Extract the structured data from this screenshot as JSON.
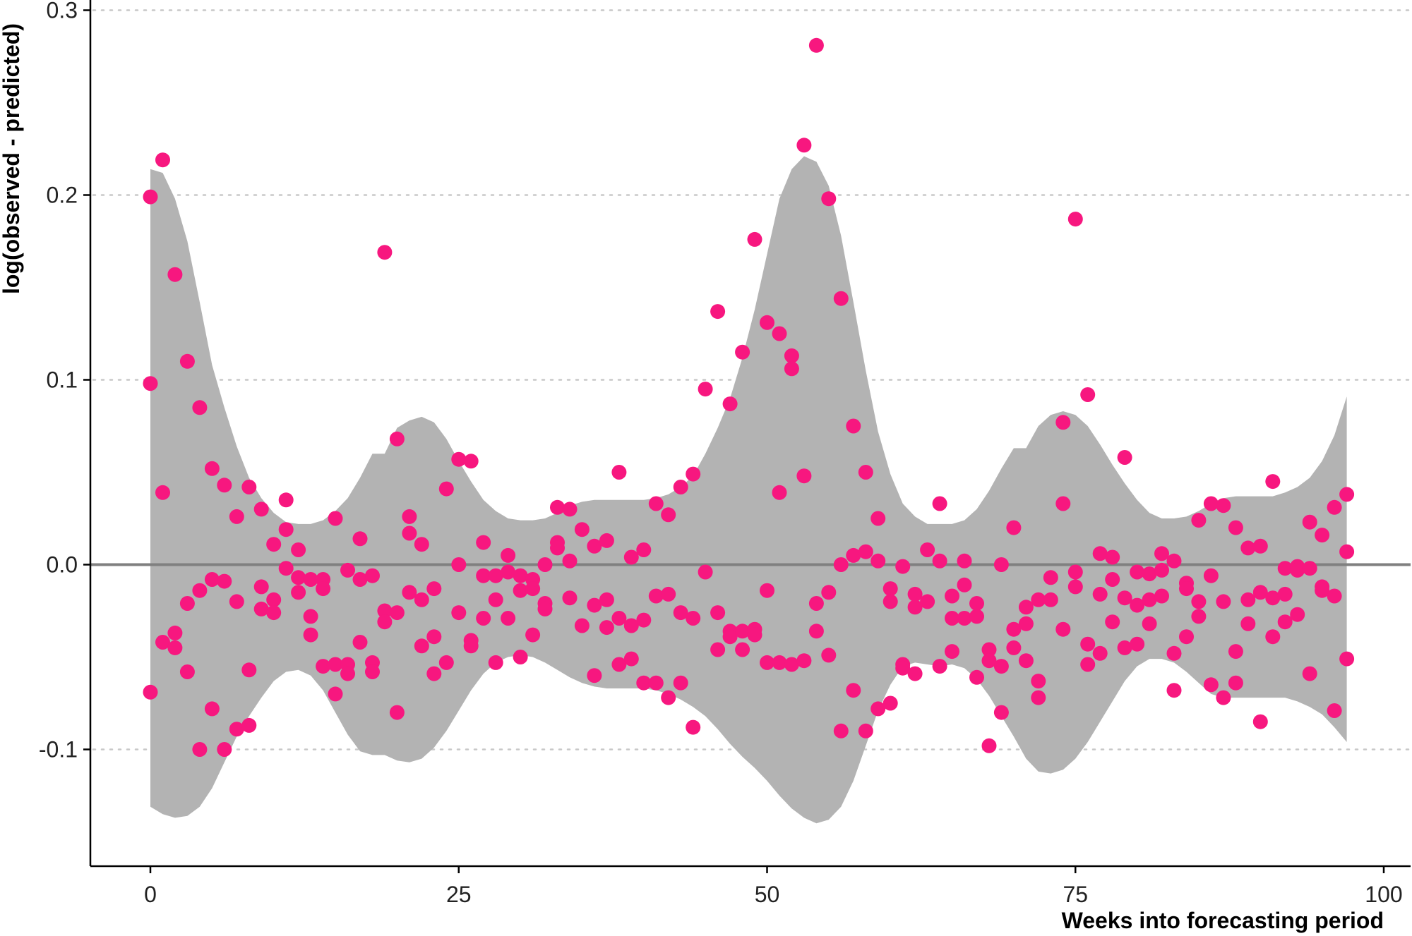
{
  "chart_data": {
    "type": "scatter",
    "xlabel": "Weeks into forecasting period",
    "ylabel": "log(observed - predicted)",
    "xlim": [
      -5,
      101
    ],
    "ylim": [
      -0.165,
      0.305
    ],
    "x_ticks": [
      0,
      25,
      50,
      75,
      100
    ],
    "x_tick_labels": [
      "0",
      "25",
      "50",
      "75",
      "100"
    ],
    "y_ticks": [
      -0.1,
      0.0,
      0.1,
      0.2,
      0.3
    ],
    "y_tick_labels": [
      "-0.1",
      "0.0",
      "0.1",
      "0.2",
      "0.3"
    ],
    "grid": "horizontal-dotted",
    "reference_line_y": 0,
    "colors": {
      "points": "#f7177f",
      "band": "#b3b3b3",
      "reference_line": "#808080",
      "grid": "#c8c8c8",
      "axis": "#000000"
    },
    "band": {
      "x": [
        0,
        1,
        2,
        3,
        4,
        5,
        6,
        7,
        8,
        9,
        10,
        11,
        12,
        13,
        14,
        15,
        16,
        17,
        18,
        19,
        20,
        21,
        22,
        23,
        24,
        25,
        26,
        27,
        28,
        29,
        30,
        31,
        32,
        33,
        34,
        35,
        36,
        37,
        38,
        39,
        40,
        41,
        42,
        43,
        44,
        45,
        46,
        47,
        48,
        49,
        50,
        51,
        52,
        53,
        54,
        55,
        56,
        57,
        58,
        59,
        60,
        61,
        62,
        63,
        64,
        65,
        66,
        67,
        68,
        69,
        70,
        71,
        72,
        73,
        74,
        75,
        76,
        77,
        78,
        79,
        80,
        81,
        82,
        83,
        84,
        85,
        86,
        87,
        88,
        89,
        90,
        91,
        92,
        93,
        94,
        95,
        96,
        97
      ],
      "upper": [
        0.214,
        0.212,
        0.198,
        0.175,
        0.142,
        0.108,
        0.085,
        0.064,
        0.047,
        0.036,
        0.028,
        0.023,
        0.022,
        0.022,
        0.024,
        0.029,
        0.036,
        0.047,
        0.06,
        0.06,
        0.074,
        0.078,
        0.08,
        0.077,
        0.068,
        0.056,
        0.045,
        0.035,
        0.029,
        0.025,
        0.024,
        0.024,
        0.025,
        0.028,
        0.032,
        0.034,
        0.035,
        0.035,
        0.035,
        0.035,
        0.035,
        0.036,
        0.038,
        0.042,
        0.048,
        0.06,
        0.074,
        0.09,
        0.112,
        0.138,
        0.168,
        0.198,
        0.214,
        0.221,
        0.218,
        0.205,
        0.178,
        0.142,
        0.105,
        0.072,
        0.049,
        0.033,
        0.026,
        0.022,
        0.022,
        0.022,
        0.024,
        0.03,
        0.04,
        0.052,
        0.063,
        0.063,
        0.075,
        0.081,
        0.083,
        0.081,
        0.075,
        0.065,
        0.054,
        0.044,
        0.035,
        0.028,
        0.025,
        0.025,
        0.026,
        0.029,
        0.033,
        0.036,
        0.037,
        0.037,
        0.037,
        0.037,
        0.039,
        0.042,
        0.047,
        0.056,
        0.07,
        0.091
      ],
      "lower": [
        -0.131,
        -0.135,
        -0.137,
        -0.136,
        -0.131,
        -0.121,
        -0.107,
        -0.093,
        -0.082,
        -0.072,
        -0.063,
        -0.058,
        -0.057,
        -0.06,
        -0.068,
        -0.08,
        -0.092,
        -0.101,
        -0.103,
        -0.103,
        -0.106,
        -0.107,
        -0.105,
        -0.099,
        -0.09,
        -0.079,
        -0.068,
        -0.059,
        -0.053,
        -0.05,
        -0.049,
        -0.05,
        -0.053,
        -0.057,
        -0.061,
        -0.064,
        -0.066,
        -0.067,
        -0.067,
        -0.067,
        -0.067,
        -0.068,
        -0.07,
        -0.073,
        -0.077,
        -0.082,
        -0.089,
        -0.097,
        -0.104,
        -0.11,
        -0.117,
        -0.125,
        -0.132,
        -0.137,
        -0.14,
        -0.138,
        -0.131,
        -0.117,
        -0.098,
        -0.079,
        -0.065,
        -0.055,
        -0.053,
        -0.054,
        -0.055,
        -0.054,
        -0.056,
        -0.062,
        -0.071,
        -0.082,
        -0.093,
        -0.105,
        -0.112,
        -0.113,
        -0.111,
        -0.105,
        -0.096,
        -0.085,
        -0.074,
        -0.063,
        -0.055,
        -0.051,
        -0.051,
        -0.053,
        -0.058,
        -0.064,
        -0.07,
        -0.072,
        -0.072,
        -0.072,
        -0.072,
        -0.072,
        -0.072,
        -0.074,
        -0.077,
        -0.081,
        -0.088,
        -0.096
      ]
    },
    "points": [
      [
        0,
        0.199
      ],
      [
        0,
        0.098
      ],
      [
        0,
        -0.069
      ],
      [
        1,
        0.219
      ],
      [
        1,
        0.039
      ],
      [
        1,
        -0.042
      ],
      [
        2,
        0.157
      ],
      [
        2,
        -0.045
      ],
      [
        2,
        -0.037
      ],
      [
        3,
        0.11
      ],
      [
        3,
        -0.021
      ],
      [
        3,
        -0.058
      ],
      [
        4,
        0.085
      ],
      [
        4,
        -0.014
      ],
      [
        4,
        -0.1
      ],
      [
        5,
        0.052
      ],
      [
        5,
        -0.008
      ],
      [
        5,
        -0.078
      ],
      [
        6,
        0.043
      ],
      [
        6,
        -0.009
      ],
      [
        6,
        -0.1
      ],
      [
        7,
        0.026
      ],
      [
        7,
        -0.02
      ],
      [
        7,
        -0.089
      ],
      [
        8,
        0.042
      ],
      [
        8,
        -0.057
      ],
      [
        8,
        -0.087
      ],
      [
        9,
        0.03
      ],
      [
        9,
        -0.012
      ],
      [
        9,
        -0.024
      ],
      [
        10,
        0.011
      ],
      [
        10,
        -0.019
      ],
      [
        10,
        -0.026
      ],
      [
        11,
        0.035
      ],
      [
        11,
        0.019
      ],
      [
        11,
        -0.002
      ],
      [
        12,
        0.008
      ],
      [
        12,
        -0.007
      ],
      [
        12,
        -0.015
      ],
      [
        13,
        -0.008
      ],
      [
        13,
        -0.028
      ],
      [
        13,
        -0.038
      ],
      [
        14,
        -0.008
      ],
      [
        14,
        -0.013
      ],
      [
        14,
        -0.055
      ],
      [
        15,
        0.025
      ],
      [
        15,
        -0.054
      ],
      [
        15,
        -0.07
      ],
      [
        16,
        -0.003
      ],
      [
        16,
        -0.054
      ],
      [
        16,
        -0.059
      ],
      [
        17,
        0.014
      ],
      [
        17,
        -0.008
      ],
      [
        17,
        -0.042
      ],
      [
        18,
        -0.006
      ],
      [
        18,
        -0.053
      ],
      [
        18,
        -0.058
      ],
      [
        19,
        0.169
      ],
      [
        19,
        -0.025
      ],
      [
        19,
        -0.031
      ],
      [
        20,
        0.068
      ],
      [
        20,
        -0.026
      ],
      [
        20,
        -0.08
      ],
      [
        21,
        0.026
      ],
      [
        21,
        0.017
      ],
      [
        21,
        -0.015
      ],
      [
        22,
        0.011
      ],
      [
        22,
        -0.019
      ],
      [
        22,
        -0.044
      ],
      [
        23,
        -0.013
      ],
      [
        23,
        -0.039
      ],
      [
        23,
        -0.059
      ],
      [
        24,
        0.041
      ],
      [
        24,
        -0.053
      ],
      [
        25,
        0.057
      ],
      [
        25,
        0.0
      ],
      [
        25,
        -0.026
      ],
      [
        26,
        0.056
      ],
      [
        26,
        -0.041
      ],
      [
        26,
        -0.044
      ],
      [
        27,
        0.012
      ],
      [
        27,
        -0.006
      ],
      [
        27,
        -0.029
      ],
      [
        28,
        -0.006
      ],
      [
        28,
        -0.019
      ],
      [
        28,
        -0.053
      ],
      [
        29,
        0.005
      ],
      [
        29,
        -0.004
      ],
      [
        29,
        -0.029
      ],
      [
        30,
        -0.006
      ],
      [
        30,
        -0.014
      ],
      [
        30,
        -0.05
      ],
      [
        31,
        -0.008
      ],
      [
        31,
        -0.013
      ],
      [
        31,
        -0.038
      ],
      [
        32,
        0.0
      ],
      [
        32,
        -0.021
      ],
      [
        32,
        -0.024
      ],
      [
        33,
        0.031
      ],
      [
        33,
        0.012
      ],
      [
        33,
        0.009
      ],
      [
        34,
        0.03
      ],
      [
        34,
        0.002
      ],
      [
        34,
        -0.018
      ],
      [
        35,
        0.019
      ],
      [
        35,
        -0.033
      ],
      [
        36,
        0.01
      ],
      [
        36,
        -0.022
      ],
      [
        36,
        -0.06
      ],
      [
        37,
        0.013
      ],
      [
        37,
        -0.019
      ],
      [
        37,
        -0.034
      ],
      [
        38,
        0.05
      ],
      [
        38,
        -0.029
      ],
      [
        38,
        -0.054
      ],
      [
        39,
        0.004
      ],
      [
        39,
        -0.033
      ],
      [
        39,
        -0.051
      ],
      [
        40,
        0.008
      ],
      [
        40,
        -0.03
      ],
      [
        40,
        -0.064
      ],
      [
        41,
        0.033
      ],
      [
        41,
        -0.017
      ],
      [
        41,
        -0.064
      ],
      [
        42,
        0.027
      ],
      [
        42,
        -0.016
      ],
      [
        42,
        -0.072
      ],
      [
        43,
        0.042
      ],
      [
        43,
        -0.026
      ],
      [
        43,
        -0.064
      ],
      [
        44,
        0.049
      ],
      [
        44,
        -0.029
      ],
      [
        44,
        -0.088
      ],
      [
        45,
        0.095
      ],
      [
        45,
        -0.004
      ],
      [
        46,
        0.137
      ],
      [
        46,
        -0.026
      ],
      [
        46,
        -0.046
      ],
      [
        47,
        0.087
      ],
      [
        47,
        -0.036
      ],
      [
        47,
        -0.039
      ],
      [
        48,
        0.115
      ],
      [
        48,
        -0.036
      ],
      [
        48,
        -0.046
      ],
      [
        49,
        0.176
      ],
      [
        49,
        -0.035
      ],
      [
        49,
        -0.038
      ],
      [
        50,
        0.131
      ],
      [
        50,
        -0.014
      ],
      [
        50,
        -0.053
      ],
      [
        51,
        0.125
      ],
      [
        51,
        0.039
      ],
      [
        51,
        -0.053
      ],
      [
        52,
        0.113
      ],
      [
        52,
        0.106
      ],
      [
        52,
        -0.054
      ],
      [
        53,
        0.227
      ],
      [
        53,
        0.048
      ],
      [
        53,
        -0.052
      ],
      [
        54,
        0.281
      ],
      [
        54,
        -0.021
      ],
      [
        54,
        -0.036
      ],
      [
        55,
        0.198
      ],
      [
        55,
        -0.015
      ],
      [
        55,
        -0.049
      ],
      [
        56,
        0.144
      ],
      [
        56,
        0.0
      ],
      [
        56,
        -0.09
      ],
      [
        57,
        0.075
      ],
      [
        57,
        0.005
      ],
      [
        57,
        -0.068
      ],
      [
        58,
        0.05
      ],
      [
        58,
        0.007
      ],
      [
        58,
        -0.09
      ],
      [
        59,
        0.025
      ],
      [
        59,
        0.002
      ],
      [
        59,
        -0.078
      ],
      [
        60,
        -0.013
      ],
      [
        60,
        -0.02
      ],
      [
        60,
        -0.075
      ],
      [
        61,
        -0.001
      ],
      [
        61,
        -0.054
      ],
      [
        61,
        -0.056
      ],
      [
        62,
        -0.016
      ],
      [
        62,
        -0.023
      ],
      [
        62,
        -0.059
      ],
      [
        63,
        0.008
      ],
      [
        63,
        -0.02
      ],
      [
        64,
        0.033
      ],
      [
        64,
        0.002
      ],
      [
        64,
        -0.055
      ],
      [
        65,
        -0.017
      ],
      [
        65,
        -0.029
      ],
      [
        65,
        -0.047
      ],
      [
        66,
        0.002
      ],
      [
        66,
        -0.011
      ],
      [
        66,
        -0.029
      ],
      [
        67,
        -0.021
      ],
      [
        67,
        -0.028
      ],
      [
        67,
        -0.061
      ],
      [
        68,
        -0.046
      ],
      [
        68,
        -0.052
      ],
      [
        68,
        -0.098
      ],
      [
        69,
        0.0
      ],
      [
        69,
        -0.055
      ],
      [
        69,
        -0.08
      ],
      [
        70,
        0.02
      ],
      [
        70,
        -0.035
      ],
      [
        70,
        -0.045
      ],
      [
        71,
        -0.023
      ],
      [
        71,
        -0.032
      ],
      [
        71,
        -0.052
      ],
      [
        72,
        -0.019
      ],
      [
        72,
        -0.063
      ],
      [
        72,
        -0.072
      ],
      [
        73,
        -0.007
      ],
      [
        73,
        -0.019
      ],
      [
        74,
        0.077
      ],
      [
        74,
        0.033
      ],
      [
        74,
        -0.035
      ],
      [
        75,
        0.187
      ],
      [
        75,
        -0.004
      ],
      [
        75,
        -0.012
      ],
      [
        76,
        0.092
      ],
      [
        76,
        -0.043
      ],
      [
        76,
        -0.054
      ],
      [
        77,
        0.006
      ],
      [
        77,
        -0.016
      ],
      [
        77,
        -0.048
      ],
      [
        78,
        0.004
      ],
      [
        78,
        -0.008
      ],
      [
        78,
        -0.031
      ],
      [
        79,
        0.058
      ],
      [
        79,
        -0.018
      ],
      [
        79,
        -0.045
      ],
      [
        80,
        -0.004
      ],
      [
        80,
        -0.022
      ],
      [
        80,
        -0.043
      ],
      [
        81,
        -0.005
      ],
      [
        81,
        -0.019
      ],
      [
        81,
        -0.032
      ],
      [
        82,
        0.006
      ],
      [
        82,
        -0.003
      ],
      [
        82,
        -0.017
      ],
      [
        83,
        0.002
      ],
      [
        83,
        -0.048
      ],
      [
        83,
        -0.068
      ],
      [
        84,
        -0.01
      ],
      [
        84,
        -0.013
      ],
      [
        84,
        -0.039
      ],
      [
        85,
        0.024
      ],
      [
        85,
        -0.02
      ],
      [
        85,
        -0.028
      ],
      [
        86,
        0.033
      ],
      [
        86,
        -0.006
      ],
      [
        86,
        -0.065
      ],
      [
        87,
        0.032
      ],
      [
        87,
        -0.02
      ],
      [
        87,
        -0.072
      ],
      [
        88,
        0.02
      ],
      [
        88,
        -0.047
      ],
      [
        88,
        -0.064
      ],
      [
        89,
        0.009
      ],
      [
        89,
        -0.019
      ],
      [
        89,
        -0.032
      ],
      [
        90,
        0.01
      ],
      [
        90,
        -0.015
      ],
      [
        90,
        -0.085
      ],
      [
        91,
        0.045
      ],
      [
        91,
        -0.018
      ],
      [
        91,
        -0.039
      ],
      [
        92,
        -0.002
      ],
      [
        92,
        -0.016
      ],
      [
        92,
        -0.031
      ],
      [
        93,
        -0.001
      ],
      [
        93,
        -0.003
      ],
      [
        93,
        -0.027
      ],
      [
        94,
        0.023
      ],
      [
        94,
        -0.002
      ],
      [
        94,
        -0.059
      ],
      [
        95,
        0.016
      ],
      [
        95,
        -0.012
      ],
      [
        95,
        -0.014
      ],
      [
        96,
        0.031
      ],
      [
        96,
        -0.017
      ],
      [
        96,
        -0.079
      ],
      [
        97,
        0.038
      ],
      [
        97,
        0.007
      ],
      [
        97,
        -0.051
      ]
    ]
  }
}
